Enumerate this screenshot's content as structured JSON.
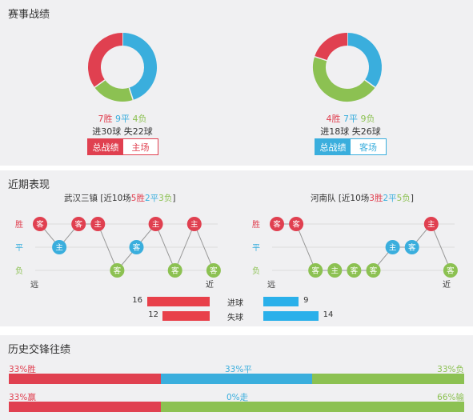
{
  "sections": {
    "record_title": "赛事战绩",
    "recent_title": "近期表现",
    "history_title": "历史交锋往绩"
  },
  "colors": {
    "win": "#e04050",
    "draw": "#3aaedd",
    "loss": "#8cc152",
    "track": "#e0e0e0"
  },
  "record": {
    "home": {
      "wins": 7,
      "draws": 9,
      "losses": 4,
      "win_text": "7胜",
      "draw_text": "9平",
      "loss_text": "4负",
      "goals_text": "进30球 失22球",
      "tab_active": "总战绩",
      "tab_other": "主场"
    },
    "away": {
      "wins": 4,
      "draws": 7,
      "losses": 9,
      "win_text": "4胜",
      "draw_text": "7平",
      "loss_text": "9负",
      "goals_text": "进18球 失26球",
      "tab_active": "总战绩",
      "tab_other": "客场"
    }
  },
  "recent": {
    "axis": {
      "win": "胜",
      "draw": "平",
      "loss": "负",
      "far": "远",
      "near": "近"
    },
    "home": {
      "title_team": "武汉三镇 [近10场",
      "title_w": "5胜",
      "title_d": "2平",
      "title_l": "3负",
      "title_end": "]",
      "matches": [
        {
          "result": "W",
          "venue": "客"
        },
        {
          "result": "D",
          "venue": "主"
        },
        {
          "result": "W",
          "venue": "客"
        },
        {
          "result": "W",
          "venue": "主"
        },
        {
          "result": "L",
          "venue": "客"
        },
        {
          "result": "D",
          "venue": "客"
        },
        {
          "result": "W",
          "venue": "主"
        },
        {
          "result": "L",
          "venue": "客"
        },
        {
          "result": "W",
          "venue": "主"
        },
        {
          "result": "L",
          "venue": "客"
        }
      ]
    },
    "away": {
      "title_team": "河南队 [近10场",
      "title_w": "3胜",
      "title_d": "2平",
      "title_l": "5负",
      "title_end": "]",
      "matches": [
        {
          "result": "W",
          "venue": "客"
        },
        {
          "result": "W",
          "venue": "客"
        },
        {
          "result": "L",
          "venue": "客"
        },
        {
          "result": "L",
          "venue": "主"
        },
        {
          "result": "L",
          "venue": "客"
        },
        {
          "result": "L",
          "venue": "客"
        },
        {
          "result": "D",
          "venue": "主"
        },
        {
          "result": "D",
          "venue": "客"
        },
        {
          "result": "W",
          "venue": "主"
        },
        {
          "result": "L",
          "venue": "客"
        }
      ]
    },
    "goals": {
      "scored_label": "进球",
      "conceded_label": "失球",
      "home_scored": 16,
      "home_conceded": 12,
      "away_scored": 9,
      "away_conceded": 14
    }
  },
  "history": {
    "row1": {
      "win": "33%胜",
      "draw": "33%平",
      "loss": "33%负",
      "win_pct": 33,
      "draw_pct": 33,
      "loss_pct": 33
    },
    "row2": {
      "win": "33%赢",
      "draw": "0%走",
      "loss": "66%输",
      "win_pct": 33,
      "draw_pct": 0,
      "loss_pct": 66
    }
  }
}
